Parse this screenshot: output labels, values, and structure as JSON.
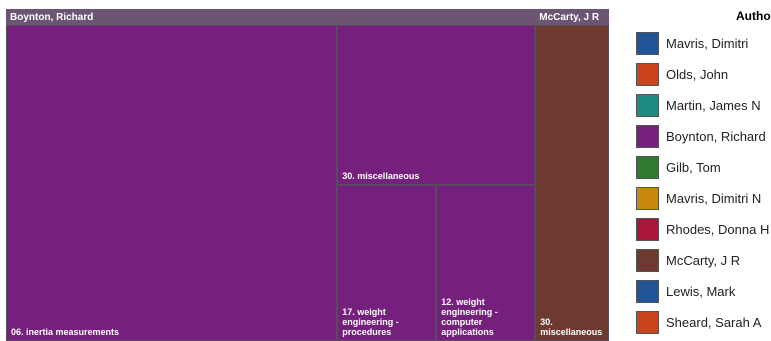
{
  "chart_data": {
    "type": "treemap",
    "legend_title": "Autho",
    "legend": [
      {
        "name": "Mavris, Dimitri",
        "color": "#1f5597"
      },
      {
        "name": "Olds, John",
        "color": "#c8441d"
      },
      {
        "name": "Martin, James N",
        "color": "#1f8a80"
      },
      {
        "name": "Boynton, Richard",
        "color": "#75207d"
      },
      {
        "name": "Gilb, Tom",
        "color": "#2e7a2e"
      },
      {
        "name": "Mavris, Dimitri N",
        "color": "#c8880e"
      },
      {
        "name": "Rhodes, Donna H",
        "color": "#a8173a"
      },
      {
        "name": "McCarty, J R",
        "color": "#6e3a2f"
      },
      {
        "name": "Lewis, Mark",
        "color": "#1f5597"
      },
      {
        "name": "Sheard, Sarah A",
        "color": "#c8441d"
      }
    ],
    "groups": [
      {
        "name": "Boynton, Richard",
        "color": "#75207d",
        "children": [
          {
            "name": "06. inertia measurements",
            "value": 58.4
          },
          {
            "name": "30. miscellaneous",
            "value": 17.7
          },
          {
            "name": "17. weight engineering - procedures",
            "value": 8.6
          },
          {
            "name": "12. weight engineering - computer applications",
            "value": 8.6
          }
        ]
      },
      {
        "name": "McCarty, J R",
        "color": "#6e3a2f",
        "children": [
          {
            "name": "30. miscellaneous",
            "value": 13.0
          }
        ]
      }
    ]
  }
}
